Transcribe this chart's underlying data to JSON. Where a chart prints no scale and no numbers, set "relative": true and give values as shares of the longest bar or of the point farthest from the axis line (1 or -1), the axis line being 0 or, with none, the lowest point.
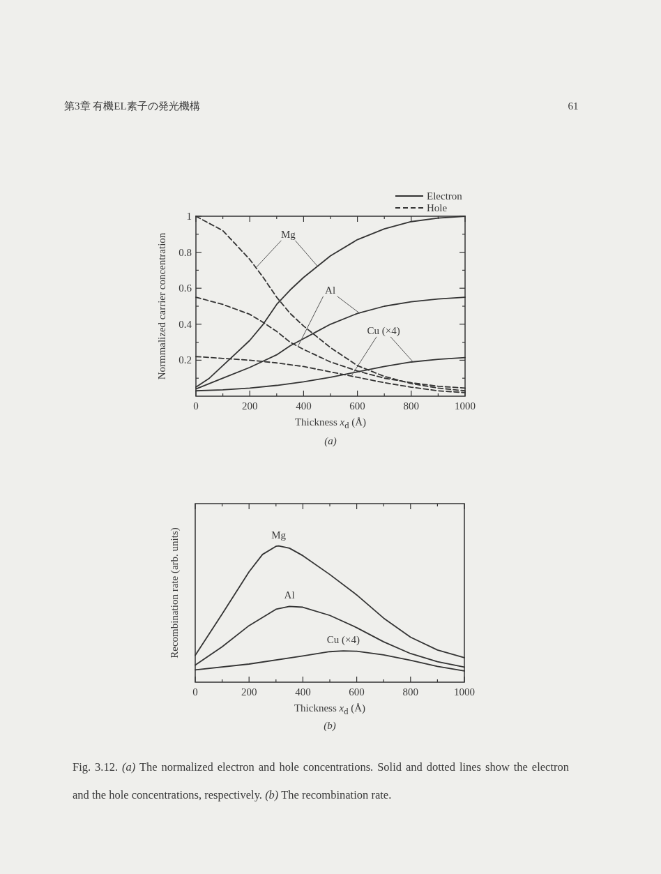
{
  "chart_data": [
    {
      "type": "line",
      "title": "第3章 有機EL素子の発光機構",
      "xlabel": "Thickness *x*$_{d}$ (Å)",
      "ylabel": "Normmalized carrier concentration",
      "legend": "top right",
      "xlim": [
        0,
        1000
      ],
      "ylim": [
        0,
        1
      ],
      "xticks": [
        0,
        {
          "value": 100,
          "label": null
        },
        200,
        {
          "value": 300,
          "label": null
        },
        400,
        {
          "value": 500,
          "label": null
        },
        600,
        {
          "value": 700,
          "label": null
        },
        800,
        {
          "value": 900,
          "label": null
        },
        1000
      ],
      "yticks": [
        {
          "value": 0.1,
          "label": null
        },
        0.2,
        {
          "value": 0.3,
          "label": null
        },
        0.4,
        {
          "value": 0.5,
          "label": null
        },
        0.6,
        {
          "value": 0.7,
          "label": null
        },
        0.8,
        {
          "value": 0.9,
          "label": null
        },
        1
      ],
      "series": [
        {
          "name": "Electron",
          "color": "#333333",
          "line_style": "solid",
          "x": [
            0,
            50,
            100,
            150,
            200,
            250,
            300,
            350,
            400,
            500,
            600,
            700,
            800,
            900,
            1000
          ],
          "values": [
            0.05,
            0.1,
            0.17,
            0.24,
            0.31,
            0.4,
            0.51,
            0.59,
            0.66,
            0.78,
            0.87,
            0.93,
            0.97,
            0.99,
            1.0
          ]
        },
        {
          "name": "Hole",
          "color": "#333333",
          "line_style": "dashed",
          "x": [
            0,
            100,
            200,
            250,
            300,
            350,
            400,
            450,
            500,
            600,
            700,
            800,
            900,
            1000
          ],
          "values": [
            1.0,
            0.92,
            0.76,
            0.66,
            0.55,
            0.46,
            0.39,
            0.33,
            0.27,
            0.17,
            0.11,
            0.07,
            0.045,
            0.03
          ]
        },
        {
          "color": "#333333",
          "line_style": "solid",
          "x": [
            0,
            100,
            200,
            300,
            350,
            400,
            450,
            500,
            600,
            700,
            800,
            900,
            1000
          ],
          "values": [
            0.04,
            0.1,
            0.16,
            0.23,
            0.28,
            0.32,
            0.36,
            0.4,
            0.46,
            0.5,
            0.525,
            0.54,
            0.55
          ]
        },
        {
          "color": "#333333",
          "line_style": "dashed",
          "x": [
            0,
            100,
            200,
            250,
            300,
            350,
            400,
            500,
            600,
            700,
            800,
            900,
            1000
          ],
          "values": [
            0.55,
            0.51,
            0.455,
            0.41,
            0.36,
            0.3,
            0.26,
            0.19,
            0.14,
            0.1,
            0.075,
            0.055,
            0.045
          ]
        },
        {
          "color": "#333333",
          "line_style": "solid",
          "x": [
            0,
            100,
            200,
            300,
            400,
            500,
            600,
            700,
            800,
            900,
            1000
          ],
          "values": [
            0.03,
            0.035,
            0.045,
            0.06,
            0.08,
            0.105,
            0.135,
            0.165,
            0.19,
            0.205,
            0.215
          ]
        },
        {
          "color": "#333333",
          "line_style": "dashed",
          "x": [
            0,
            100,
            200,
            300,
            400,
            500,
            600,
            700,
            800,
            900,
            1000
          ],
          "values": [
            0.22,
            0.21,
            0.2,
            0.185,
            0.165,
            0.135,
            0.105,
            0.075,
            0.05,
            0.03,
            0.02
          ]
        }
      ],
      "annotations": [
        "61",
        "*(a)*",
        {
          "text": "Mg",
          "x": 453,
          "y": 0.72
        },
        {
          "text": "Al",
          "x": 609,
          "y": 0.46
        },
        {
          "text": "Cu (×4)",
          "x": 807,
          "y": 0.19
        }
      ]
    },
    {
      "type": "line",
      "relative": true,
      "tick_labels": "x",
      "xlabel": "Thickness *x*$_{d}$ (Å)",
      "ylabel": "Recombination rate (arb. units)",
      "xlim": [
        0,
        1000
      ],
      "xticks": [
        0,
        {
          "value": 100,
          "label": null
        },
        200,
        {
          "value": 300,
          "label": null
        },
        400,
        {
          "value": 500,
          "label": null
        },
        600,
        {
          "value": 700,
          "label": null
        },
        800,
        {
          "value": 900,
          "label": null
        },
        1000
      ],
      "series": [
        {
          "color": "#333333",
          "x": [
            0,
            100,
            200,
            250,
            300,
            310,
            350,
            400,
            500,
            600,
            700,
            800,
            900,
            1000
          ],
          "values": [
            0.197,
            0.5,
            0.81,
            0.937,
            0.997,
            1.0,
            0.983,
            0.928,
            0.79,
            0.64,
            0.47,
            0.33,
            0.236,
            0.18
          ]
        },
        {
          "color": "#333333",
          "x": [
            0,
            100,
            200,
            300,
            350,
            400,
            500,
            600,
            700,
            800,
            900,
            1000
          ],
          "values": [
            0.125,
            0.26,
            0.415,
            0.535,
            0.556,
            0.55,
            0.49,
            0.4,
            0.296,
            0.21,
            0.15,
            0.111
          ]
        },
        {
          "color": "#333333",
          "x": [
            0,
            200,
            400,
            500,
            550,
            600,
            700,
            800,
            900,
            1000
          ],
          "values": [
            0.09,
            0.133,
            0.193,
            0.224,
            0.23,
            0.227,
            0.2,
            0.16,
            0.116,
            0.082
          ]
        }
      ],
      "annotations": [
        "Mg",
        "Al",
        "Cu (×4)",
        "*(b)*",
        "Fig. 3.12. *(a)* The normalized electron and hole concentrations. Solid and dotted lines show the electron and the hole concentrations, respectively. *(b)* The recombination rate."
      ]
    }
  ]
}
